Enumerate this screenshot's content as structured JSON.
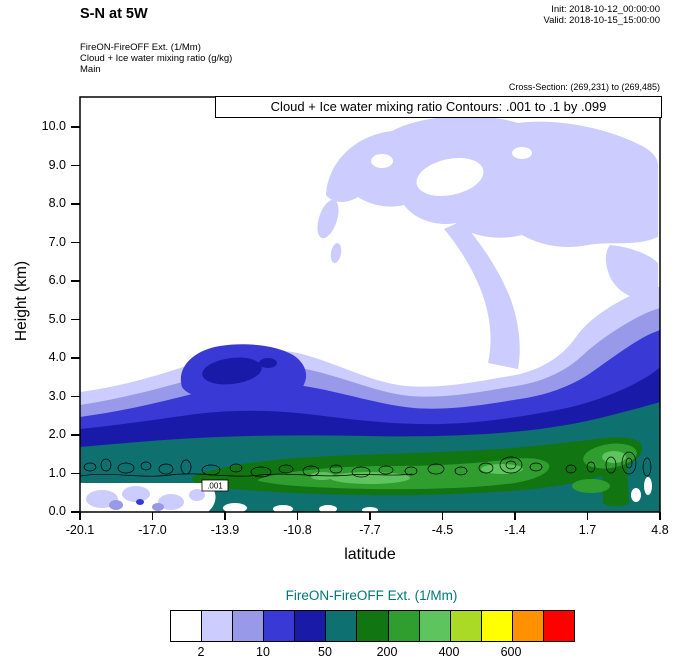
{
  "header": {
    "title": "S-N at 5W",
    "init": "Init: 2018-10-12_00:00:00",
    "valid": "Valid: 2018-10-15_15:00:00"
  },
  "annotations": {
    "line1": "FireON-FireOFF Ext.  (1/Mm)",
    "line2": "Cloud + Ice water mixing ratio  (g/kg)",
    "line3": "Main",
    "cross_section": "Cross-Section: (269,231) to (269,485)"
  },
  "plot": {
    "inner_title": "Cloud + Ice water mixing ratio Contours: .001 to .1 by .099",
    "xlabel": "latitude",
    "ylabel": "Height (km)",
    "x_ticks": [
      "-20.1",
      "-17.0",
      "-13.9",
      "-10.8",
      "-7.7",
      "-4.5",
      "-1.4",
      "1.7",
      "4.8"
    ],
    "y_ticks": [
      "0.0",
      "1.0",
      "2.0",
      "3.0",
      "4.0",
      "5.0",
      "6.0",
      "7.0",
      "8.0",
      "9.0",
      "10.0"
    ],
    "contour_label": ".001"
  },
  "colorbar": {
    "title": "FireON-FireOFF Ext.  (1/Mm)",
    "title_color": "#007777",
    "colors": [
      "#ffffff",
      "#ccccff",
      "#9999ea",
      "#3939d6",
      "#1a1aa8",
      "#0f7070",
      "#117611",
      "#2f9e2f",
      "#5ec45e",
      "#aada26",
      "#ffff00",
      "#ff9100",
      "#ff0000"
    ],
    "labels": [
      "2",
      "10",
      "50",
      "200",
      "400",
      "600"
    ],
    "label_boundaries": [
      1,
      3,
      5,
      7,
      9,
      11
    ]
  },
  "chart_data": {
    "type": "heatmap",
    "subtype": "filled_contour_vertical_cross_section",
    "title": "Cloud + Ice water mixing ratio Contours: .001 to .1 by .099",
    "suptitle": "S-N at 5W",
    "xlabel": "latitude",
    "ylabel": "Height (km)",
    "xlim": [
      -20.1,
      4.8
    ],
    "ylim": [
      0,
      10.8
    ],
    "x_ticks": [
      -20.1,
      -17.0,
      -13.9,
      -10.8,
      -7.7,
      -4.5,
      -1.4,
      1.7,
      4.8
    ],
    "y_ticks": [
      0,
      1,
      2,
      3,
      4,
      5,
      6,
      7,
      8,
      9,
      10
    ],
    "fill_variable": "FireON-FireOFF Ext. (1/Mm)",
    "fill_labeled_levels": [
      2,
      10,
      50,
      200,
      400,
      600
    ],
    "fill_palette": [
      "#ffffff",
      "#ccccff",
      "#9999ea",
      "#3939d6",
      "#1a1aa8",
      "#0f7070",
      "#117611",
      "#2f9e2f",
      "#5ec45e",
      "#aada26",
      "#ffff00",
      "#ff9100",
      "#ff0000"
    ],
    "line_variable": "Cloud + Ice water mixing ratio (g/kg)",
    "line_levels": [
      0.001,
      0.1
    ],
    "features": [
      {
        "region": "upper-level plume arc",
        "lat_range": [
          -9.5,
          4.8
        ],
        "height_km": [
          5.5,
          10.3
        ],
        "ext_1_per_Mm": "2-10",
        "note": "thin lavender arc with embedded clear holes, arching from mid-domain toward NE corner"
      },
      {
        "region": "descending filament",
        "lat_range": [
          -4.5,
          -2.0
        ],
        "height_km": [
          3.5,
          7.5
        ],
        "ext_1_per_Mm": "2-10",
        "note": "connects upper arc to boundary-layer plume"
      },
      {
        "region": "boundary-layer plume",
        "lat_range": [
          -20.1,
          4.8
        ],
        "height_km": [
          0,
          4.5
        ],
        "ext_1_per_Mm": "10-400",
        "note": "continuous smoke layer; strongest (green, 200-400) between 0.8 and 1.7 km from lat -14 to 2"
      },
      {
        "region": "elevated blue lobe",
        "lat_range": [
          -16.5,
          -11.5
        ],
        "height_km": [
          3.3,
          4.6
        ],
        "ext_1_per_Mm": "50-200",
        "note": "detached maximum with dark-blue core near lat -15"
      },
      {
        "region": "deep NE column",
        "lat_range": [
          0.5,
          4.8
        ],
        "height_km": [
          0,
          6
        ],
        "ext_1_per_Mm": "50-400",
        "note": "deep column of enhanced extinction at right edge"
      },
      {
        "region": "cloud water contours",
        "lat_range": [
          -20.1,
          4.8
        ],
        "height_km": [
          0.5,
          1.6
        ],
        "value_g_per_kg": [
          0.001,
          0.1
        ],
        "note": "string of small closed black contours along ~1 km height"
      }
    ]
  }
}
